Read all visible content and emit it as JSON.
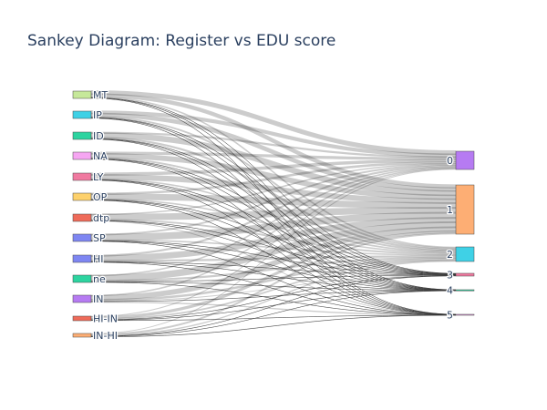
{
  "title": "Sankey Diagram: Register vs EDU score",
  "source_nodes": [
    {
      "label": "MT",
      "color": "#C6E89A"
    },
    {
      "label": "IP",
      "color": "#3FD1E6"
    },
    {
      "label": "ID",
      "color": "#2DD4A0"
    },
    {
      "label": "NA",
      "color": "#F6A6F2"
    },
    {
      "label": "LY",
      "color": "#F07AA0"
    },
    {
      "label": "OP",
      "color": "#FDD16C"
    },
    {
      "label": "dtp",
      "color": "#EF6B5A"
    },
    {
      "label": "SP",
      "color": "#7E86F2"
    },
    {
      "label": "HI",
      "color": "#7E86F2"
    },
    {
      "label": "ne",
      "color": "#2DD4A0"
    },
    {
      "label": "IN",
      "color": "#B67BF2"
    },
    {
      "label": "HI-IN",
      "color": "#EF6B5A"
    },
    {
      "label": "IN-HI",
      "color": "#FDAE74"
    }
  ],
  "target_nodes": [
    {
      "label": "0",
      "color": "#B67BF2"
    },
    {
      "label": "1",
      "color": "#FDAE74"
    },
    {
      "label": "2",
      "color": "#3FD1E6"
    },
    {
      "label": "3",
      "color": "#F07AA0"
    },
    {
      "label": "4",
      "color": "#2DD4A0"
    },
    {
      "label": "5",
      "color": "#F6A6F2"
    }
  ],
  "link_color": "rgba(0,0,0,0.2)",
  "link_stroke_color": "#444444"
}
